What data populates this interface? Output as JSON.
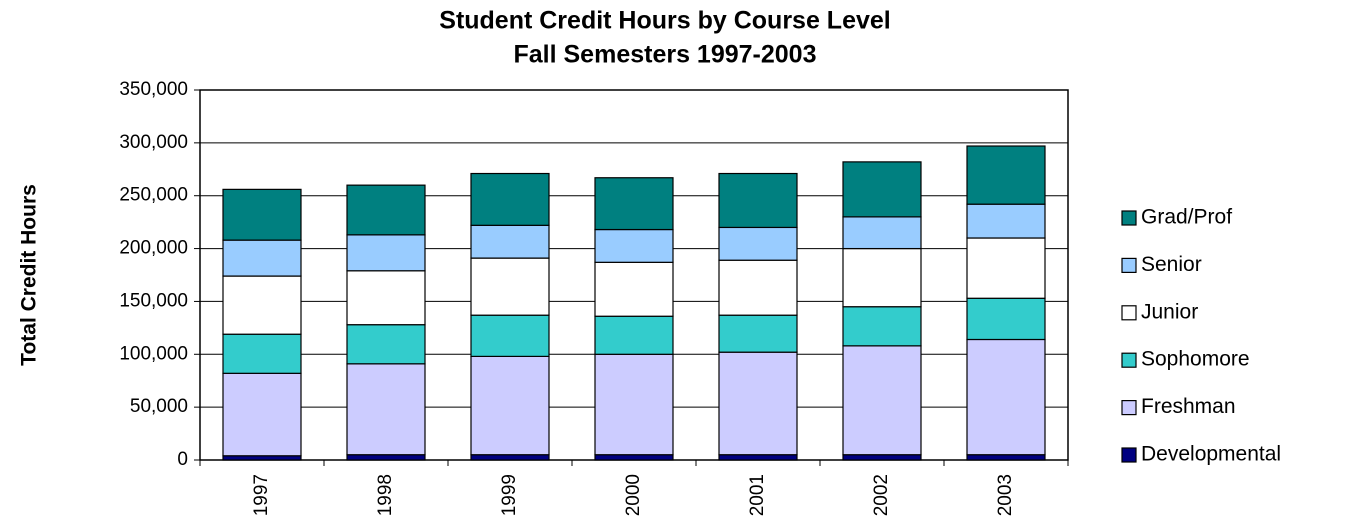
{
  "chart_data": {
    "type": "stacked_bar",
    "title": "Student Credit Hours by Course Level",
    "subtitle": "Fall Semesters 1997-2003",
    "y_label": "Total Credit Hours",
    "categories": [
      "1997",
      "1998",
      "1999",
      "2000",
      "2001",
      "2002",
      "2003"
    ],
    "series": [
      {
        "name": "Developmental",
        "color": "#000080",
        "values": [
          4000,
          5000,
          5000,
          5000,
          5000,
          5000,
          5000
        ]
      },
      {
        "name": "Freshman",
        "color": "#ccccff",
        "values": [
          78000,
          86000,
          93000,
          95000,
          97000,
          103000,
          109000
        ]
      },
      {
        "name": "Sophomore",
        "color": "#33cccc",
        "values": [
          37000,
          37000,
          39000,
          36000,
          35000,
          37000,
          39000
        ]
      },
      {
        "name": "Junior",
        "color": "#ffffff",
        "values": [
          55000,
          51000,
          54000,
          51000,
          52000,
          55000,
          57000
        ]
      },
      {
        "name": "Senior",
        "color": "#99ccff",
        "values": [
          34000,
          34000,
          31000,
          31000,
          31000,
          30000,
          32000
        ]
      },
      {
        "name": "Grad/Prof",
        "color": "#008080",
        "values": [
          48000,
          47000,
          49000,
          49000,
          51000,
          52000,
          55000
        ]
      }
    ],
    "ylim": [
      0,
      350000
    ],
    "yticks": [
      0,
      {
        "value": 50000,
        "label": "50,000"
      },
      {
        "value": 100000,
        "label": "100,000"
      },
      {
        "value": 150000,
        "label": "150,000"
      },
      {
        "value": 200000,
        "label": "200,000"
      },
      {
        "value": 250000,
        "label": "250,000"
      },
      {
        "value": 300000,
        "label": "300,000"
      },
      {
        "value": 350000,
        "label": "350,000"
      }
    ],
    "grid": true,
    "legend": "right"
  }
}
